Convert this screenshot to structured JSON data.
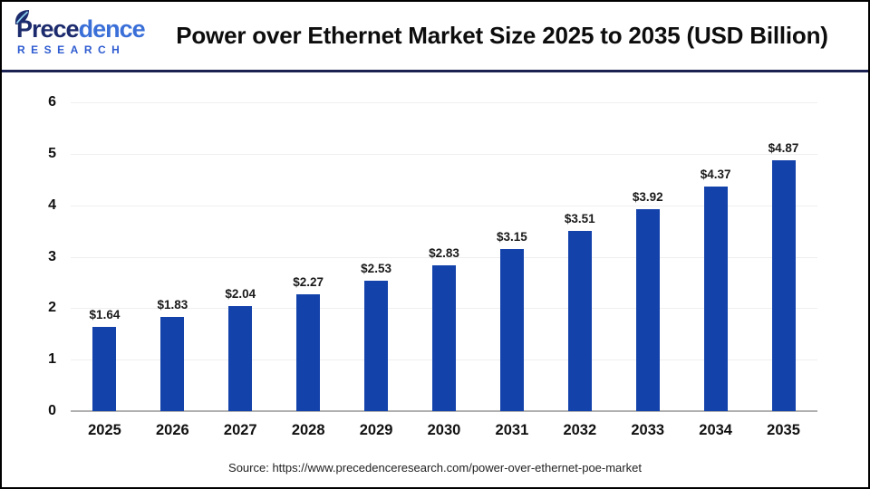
{
  "header": {
    "logo": {
      "word_dark": "Prece",
      "word_light": "dence",
      "subtitle": "RESEARCH",
      "color_dark": "#1c2b6d",
      "color_light": "#3a6fd8",
      "subtitle_color": "#2d5bd0"
    },
    "divider_color": "#1b2150"
  },
  "chart_data": {
    "type": "bar",
    "title": "Power over Ethernet Market Size 2025 to 2035 (USD Billion)",
    "categories": [
      "2025",
      "2026",
      "2027",
      "2028",
      "2029",
      "2030",
      "2031",
      "2032",
      "2033",
      "2034",
      "2035"
    ],
    "values": [
      1.64,
      1.83,
      2.04,
      2.27,
      2.53,
      2.83,
      3.15,
      3.51,
      3.92,
      4.37,
      4.87
    ],
    "value_labels": [
      "$1.64",
      "$1.83",
      "$2.04",
      "$2.27",
      "$2.53",
      "$2.83",
      "$3.15",
      "$3.51",
      "$3.92",
      "$4.37",
      "$4.87"
    ],
    "unit": "USD Billion",
    "xlabel": "",
    "ylabel": "",
    "ylim": [
      0,
      6
    ],
    "yticks": [
      0,
      1,
      2,
      3,
      4,
      5,
      6
    ],
    "grid": true,
    "legend": "none",
    "bar_color": "#1342ab",
    "gridline_color": "#efefef",
    "baseline_color": "#b0b0b0"
  },
  "footer": {
    "source": "Source: https://www.precedenceresearch.com/power-over-ethernet-poe-market"
  }
}
